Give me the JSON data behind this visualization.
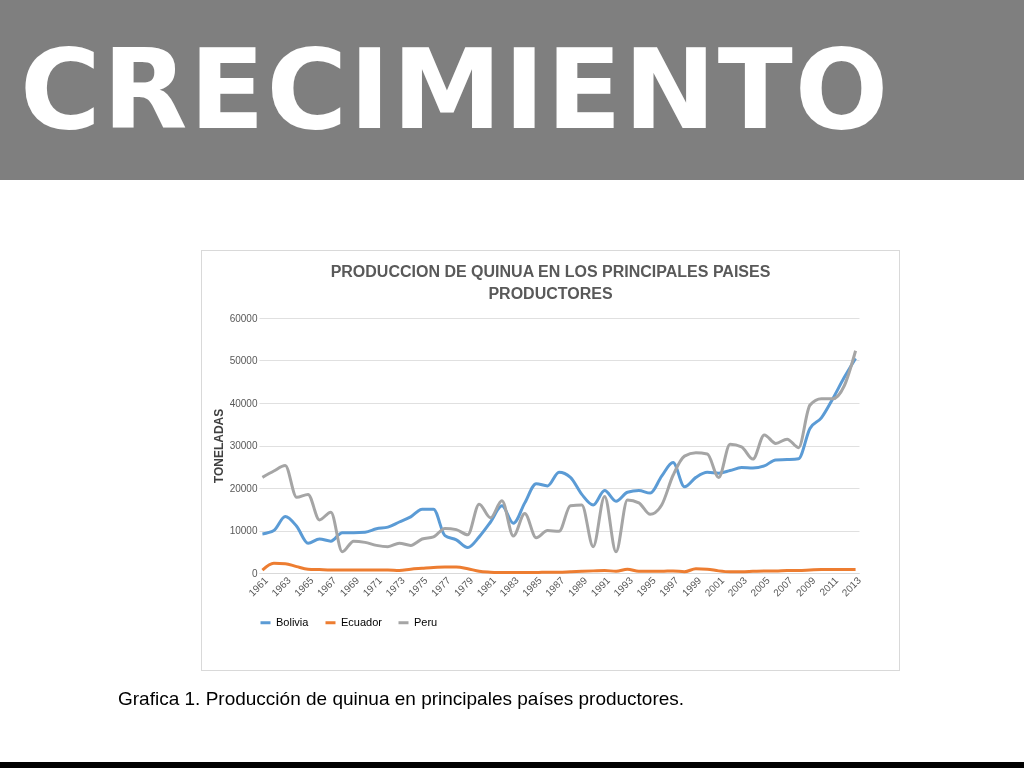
{
  "chart_data": {
    "type": "line",
    "title": "PRODUCCION DE QUINUA EN LOS PRINCIPALES PAISES PRODUCTORES",
    "ylabel": "TONELADAS",
    "annotations": [
      "CRECIMIENTO",
      "Grafica 1.  Producción de quinua en principales países productores."
    ],
    "categories": [
      "1961",
      null,
      "1963",
      null,
      "1965",
      null,
      "1967",
      null,
      "1969",
      null,
      "1971",
      null,
      "1973",
      null,
      "1975",
      null,
      "1977",
      null,
      "1979",
      null,
      "1981",
      null,
      "1983",
      null,
      "1985",
      null,
      "1987",
      null,
      "1989",
      null,
      "1991",
      null,
      "1993",
      null,
      "1995",
      null,
      "1997",
      null,
      "1999",
      null,
      "2001",
      null,
      "2003",
      null,
      "2005",
      null,
      "2007",
      null,
      "2009",
      null,
      "2011",
      null,
      "2013"
    ],
    "series": [
      {
        "name": "Bolivia",
        "color": "#5b9bd5",
        "values": [
          9200,
          10000,
          13300,
          11000,
          7000,
          8000,
          7500,
          9500,
          9500,
          9600,
          10400,
          10800,
          12000,
          13200,
          15000,
          15000,
          8800,
          7800,
          6000,
          8500,
          12000,
          15800,
          11700,
          16500,
          21000,
          20500,
          23700,
          22500,
          18500,
          16000,
          19400,
          16900,
          19000,
          19400,
          18800,
          22800,
          26000,
          20300,
          22500,
          23700,
          23500,
          24100,
          24800,
          24700,
          25200,
          26600,
          26700,
          26900,
          34000,
          36500,
          41000,
          46000,
          50500
        ]
      },
      {
        "name": "Ecuador",
        "color": "#ed7d31",
        "values": [
          700,
          2300,
          2200,
          1500,
          900,
          800,
          700,
          700,
          700,
          700,
          700,
          700,
          600,
          900,
          1100,
          1300,
          1400,
          1400,
          1000,
          400,
          200,
          100,
          100,
          100,
          100,
          200,
          200,
          300,
          400,
          500,
          600,
          400,
          900,
          400,
          400,
          400,
          500,
          300,
          1000,
          900,
          500,
          300,
          300,
          400,
          500,
          500,
          600,
          600,
          700,
          800,
          800,
          800,
          800
        ]
      },
      {
        "name": "Peru",
        "color": "#a5a5a5",
        "values": [
          22500,
          24000,
          25300,
          17800,
          18500,
          12500,
          14300,
          5000,
          7500,
          7200,
          6500,
          6200,
          7000,
          6500,
          8000,
          8500,
          10500,
          10200,
          9000,
          16200,
          13000,
          17000,
          8700,
          14000,
          8300,
          10000,
          9800,
          15800,
          16000,
          6200,
          18000,
          5000,
          17200,
          16500,
          13800,
          16000,
          23000,
          27500,
          28300,
          28000,
          22500,
          30300,
          29700,
          26800,
          32500,
          30500,
          31500,
          29500,
          39500,
          41000,
          41000,
          44000,
          52300
        ]
      }
    ],
    "ylim": [
      0,
      60000
    ],
    "yticks": [
      0,
      10000,
      20000,
      30000,
      40000,
      50000,
      60000
    ],
    "grid": "y",
    "legend": "bottom",
    "line_style": "solid",
    "marker": "none"
  }
}
